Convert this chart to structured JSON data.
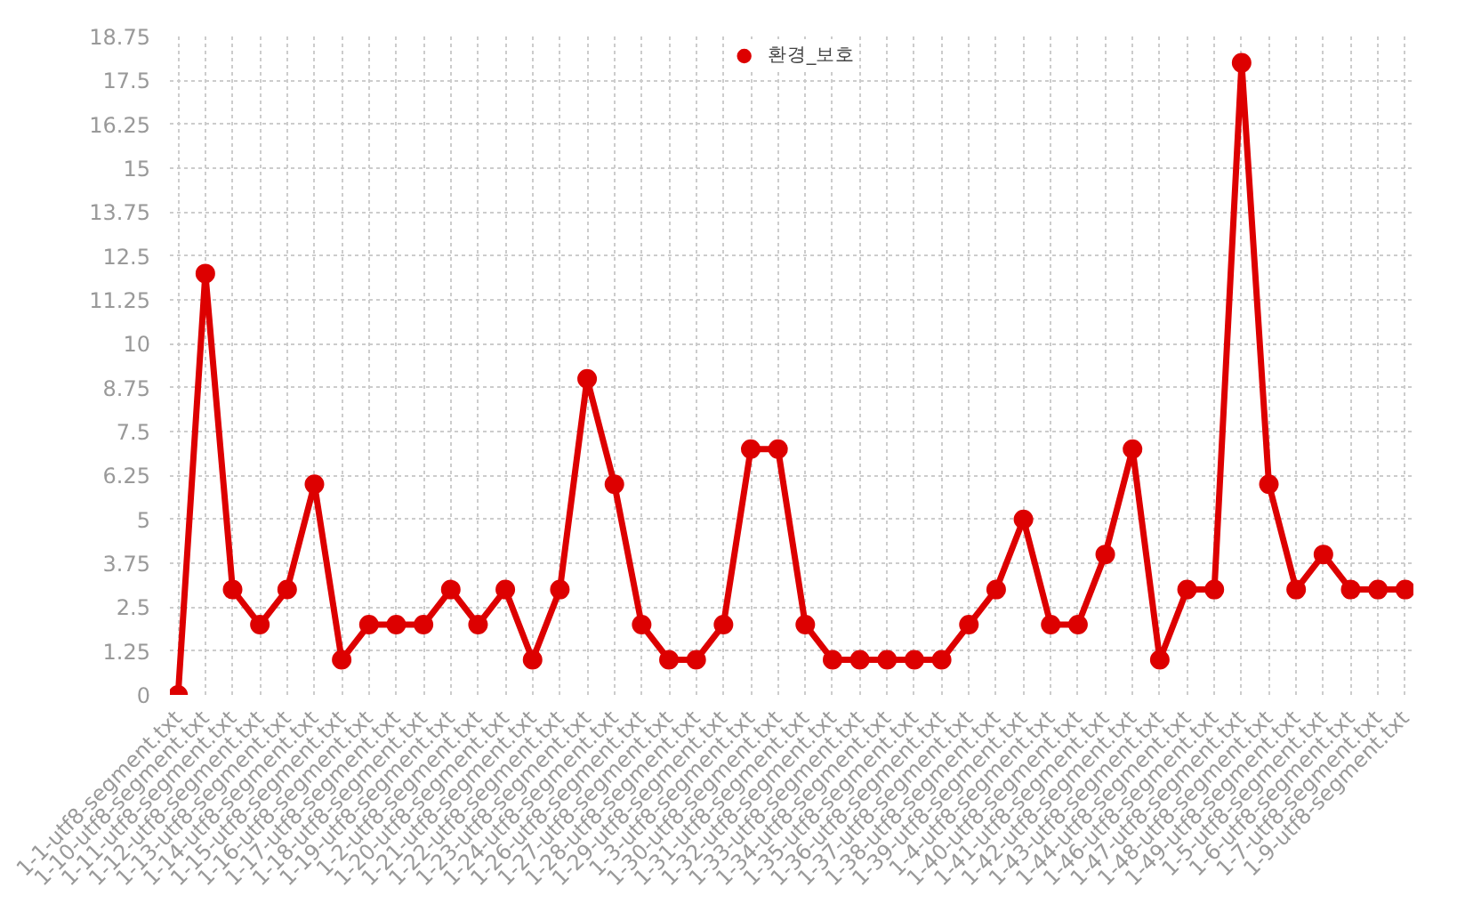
{
  "chart_data": {
    "type": "line",
    "categories": [
      "1-1-utf8-segment.txt",
      "1-10-utf8-segment.txt",
      "1-11-utf8-segment.txt",
      "1-12-utf8-segment.txt",
      "1-13-utf8-segment.txt",
      "1-14-utf8-segment.txt",
      "1-15-utf8-segment.txt",
      "1-16-utf8-segment.txt",
      "1-17-utf8-segment.txt",
      "1-18-utf8-segment.txt",
      "1-19-utf8-segment.txt",
      "1-2-utf8-segment.txt",
      "1-20-utf8-segment.txt",
      "1-21-utf8-segment.txt",
      "1-22-utf8-segment.txt",
      "1-23-utf8-segment.txt",
      "1-24-utf8-segment.txt",
      "1-26-utf8-segment.txt",
      "1-27-utf8-segment.txt",
      "1-28-utf8-segment.txt",
      "1-29-utf8-segment.txt",
      "1-3-utf8-segment.txt",
      "1-30-utf8-segment.txt",
      "1-31-utf8-segment.txt",
      "1-32-utf8-segment.txt",
      "1-33-utf8-segment.txt",
      "1-34-utf8-segment.txt",
      "1-35-utf8-segment.txt",
      "1-36-utf8-segment.txt",
      "1-37-utf8-segment.txt",
      "1-38-utf8-segment.txt",
      "1-39-utf8-segment.txt",
      "1-4-utf8-segment.txt",
      "1-40-utf8-segment.txt",
      "1-41-utf8-segment.txt",
      "1-42-utf8-segment.txt",
      "1-43-utf8-segment.txt",
      "1-44-utf8-segment.txt",
      "1-46-utf8-segment.txt",
      "1-47-utf8-segment.txt",
      "1-48-utf8-segment.txt",
      "1-49-utf8-segment.txt",
      "1-5-utf8-segment.txt",
      "1-6-utf8-segment.txt",
      "1-7-utf8-segment.txt",
      "1-9-utf8-segment.txt"
    ],
    "series": [
      {
        "name": "환경_보호",
        "color": "#dd0000",
        "values": [
          0,
          12,
          3,
          2,
          3,
          6,
          1,
          2,
          2,
          2,
          3,
          2,
          3,
          1,
          3,
          9,
          6,
          2,
          1,
          1,
          2,
          7,
          7,
          2,
          1,
          1,
          1,
          1,
          1,
          2,
          3,
          5,
          2,
          2,
          4,
          7,
          1,
          3,
          3,
          18,
          6,
          3,
          4,
          3,
          3,
          3
        ]
      }
    ],
    "ylim": [
      0,
      18.75
    ],
    "yticks": [
      0,
      1.25,
      2.5,
      3.75,
      5,
      6.25,
      7.5,
      8.75,
      10,
      11.25,
      12.5,
      13.75,
      15,
      16.25,
      17.5,
      18.75
    ],
    "grid": true,
    "legend": "top",
    "marker": "circle",
    "line_style": "solid"
  }
}
